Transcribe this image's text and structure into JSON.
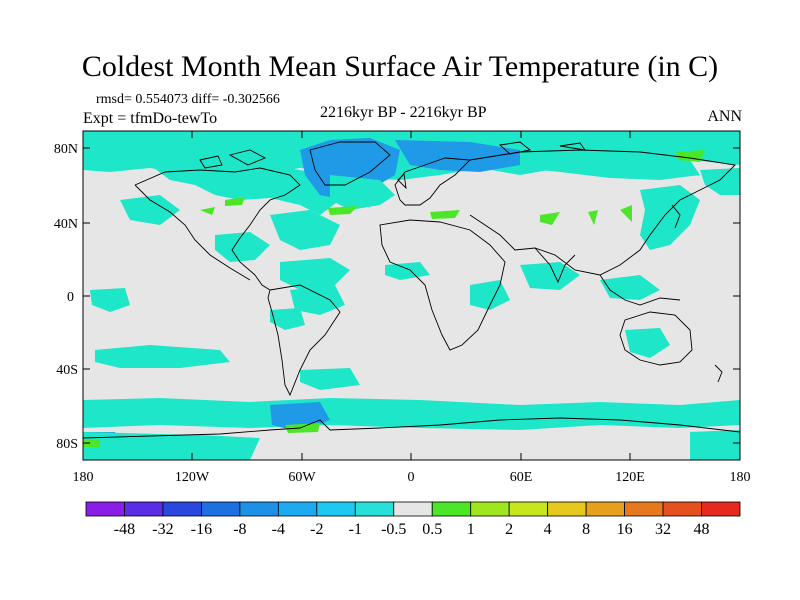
{
  "title": "Coldest Month Mean Surface Air Temperature (in C)",
  "stats": "rmsd= 0.554073 diff= -0.302566",
  "experiment": "Expt = tfmDo-tewTo",
  "period": "2216kyr BP - 2216kyr BP",
  "season": "ANN",
  "lat_labels": [
    "80N",
    "40N",
    "0",
    "40S",
    "80S"
  ],
  "lon_labels": [
    "180",
    "120W",
    "60W",
    "0",
    "60E",
    "120E",
    "180"
  ],
  "colorbar": {
    "labels": [
      "-48",
      "-32",
      "-16",
      "-8",
      "-4",
      "-2",
      "-1",
      "-0.5",
      "0.5",
      "1",
      "2",
      "4",
      "8",
      "16",
      "32",
      "48"
    ],
    "colors": [
      "#8a1ee6",
      "#5a2de6",
      "#2a48e0",
      "#1e6fe0",
      "#1e90e6",
      "#1eaaf0",
      "#1ec8f0",
      "#28e0d8",
      "#e6e6e6",
      "#4ce628",
      "#a0e61e",
      "#c8e61e",
      "#e6c81e",
      "#e6a01e",
      "#e6781e",
      "#e6501e",
      "#e6281e"
    ]
  },
  "colors": {
    "ocean_neutral": "#e6e6e6",
    "cyan": "#1ee6c8",
    "blue": "#1e9ae6",
    "green": "#4ce628",
    "coast": "#000000"
  }
}
